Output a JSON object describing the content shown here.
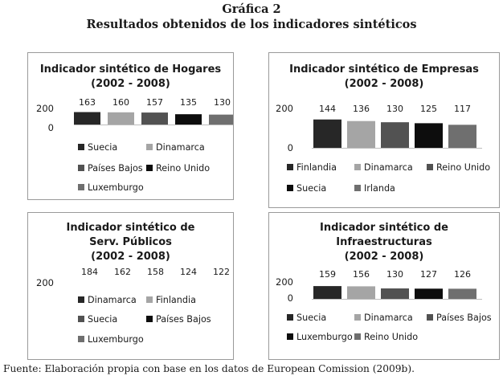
{
  "header": {
    "label": "Gráfica 2",
    "title": "Resultados obtenidos de los indicadores sintéticos"
  },
  "colors": {
    "dark": "#272727",
    "light_gray": "#a5a5a5",
    "mid_gray": "#525252",
    "black": "#0d0d0d",
    "gray": "#6f6f6f"
  },
  "chart_data": [
    {
      "type": "bar",
      "title": "Indicador sintético de Hogares",
      "period": "(2002 - 2008)",
      "categories": [
        "Suecia",
        "Dinamarca",
        "Países Bajos",
        "Reino Unido",
        "Luxemburgo"
      ],
      "values": [
        163,
        160,
        157,
        135,
        130
      ],
      "data_labels": [
        "163",
        "160",
        "157",
        "135",
        "130"
      ],
      "colors": [
        "#272727",
        "#a5a5a5",
        "#525252",
        "#0d0d0d",
        "#6f6f6f"
      ],
      "y_ticks": [
        "200",
        "0"
      ],
      "ylim": [
        0,
        200
      ],
      "legend": [
        "Suecia",
        "Dinamarca",
        "Países Bajos",
        "Reino Unido",
        "Luxemburgo"
      ],
      "legend_position": "bottom"
    },
    {
      "type": "bar",
      "title": "Indicador sintético de Empresas",
      "period": "(2002 - 2008)",
      "categories": [
        "Finlandia",
        "Dinamarca",
        "Reino Unido",
        "Suecia",
        "Irlanda"
      ],
      "values": [
        144,
        136,
        130,
        125,
        117
      ],
      "data_labels": [
        "144",
        "136",
        "130",
        "125",
        "117"
      ],
      "colors": [
        "#272727",
        "#a5a5a5",
        "#525252",
        "#0d0d0d",
        "#6f6f6f"
      ],
      "y_ticks": [
        "200",
        "0"
      ],
      "ylim": [
        0,
        200
      ],
      "legend": [
        "Finlandia",
        "Dinamarca",
        "Reino Unido",
        "Suecia",
        "Irlanda"
      ],
      "legend_position": "bottom"
    },
    {
      "type": "bar",
      "title": "Indicador sintético de Serv. Públicos",
      "period": "(2002 - 2008)",
      "categories": [
        "Dinamarca",
        "Finlandia",
        "Suecia",
        "Países Bajos",
        "Luxemburgo"
      ],
      "values": [
        184,
        162,
        158,
        124,
        122
      ],
      "data_labels": [
        "184",
        "162",
        "158",
        "124",
        "122"
      ],
      "colors": [
        "#272727",
        "#a5a5a5",
        "#525252",
        "#0d0d0d",
        "#6f6f6f"
      ],
      "y_ticks": [
        "200"
      ],
      "ylim": [
        0,
        200
      ],
      "legend": [
        "Dinamarca",
        "Finlandia",
        "Suecia",
        "Países Bajos",
        "Luxemburgo"
      ],
      "legend_position": "bottom"
    },
    {
      "type": "bar",
      "title": "Indicador sintético de Infraestructuras",
      "period": "(2002 - 2008)",
      "categories": [
        "Suecia",
        "Dinamarca",
        "Países Bajos",
        "Luxemburgo",
        "Reino Unido"
      ],
      "values": [
        159,
        156,
        130,
        127,
        126
      ],
      "data_labels": [
        "159",
        "156",
        "130",
        "127",
        "126"
      ],
      "colors": [
        "#272727",
        "#a5a5a5",
        "#525252",
        "#0d0d0d",
        "#6f6f6f"
      ],
      "y_ticks": [
        "200",
        "0"
      ],
      "ylim": [
        0,
        200
      ],
      "legend": [
        "Suecia",
        "Dinamarca",
        "Países Bajos",
        "Luxemburgo",
        "Reino Unido"
      ],
      "legend_position": "bottom"
    }
  ],
  "source": "Fuente: Elaboración propia con base en los datos de European Comission (2009b)."
}
